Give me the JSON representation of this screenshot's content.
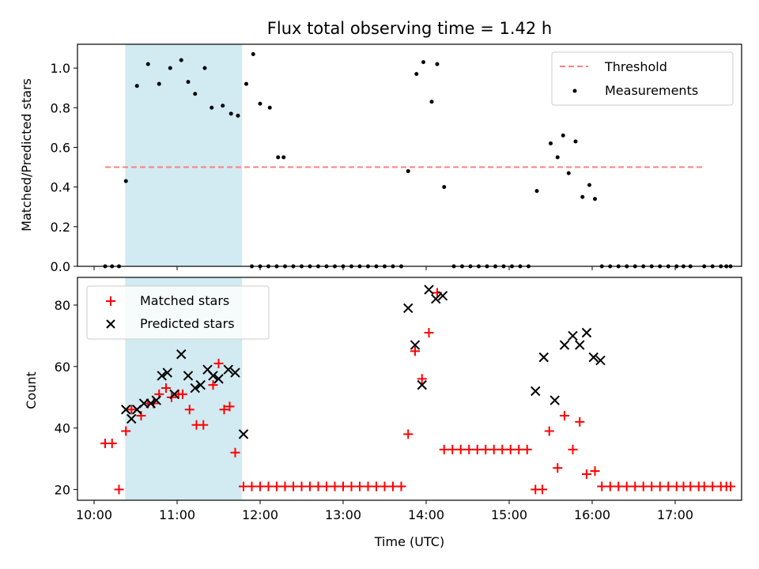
{
  "title": "Flux total observing time = 1.42 h",
  "x_axis": {
    "label": "Time (UTC)",
    "ticks": [
      {
        "t": 10,
        "label": "10:00"
      },
      {
        "t": 11,
        "label": "11:00"
      },
      {
        "t": 12,
        "label": "12:00"
      },
      {
        "t": 13,
        "label": "13:00"
      },
      {
        "t": 14,
        "label": "14:00"
      },
      {
        "t": 15,
        "label": "15:00"
      },
      {
        "t": 16,
        "label": "16:00"
      },
      {
        "t": 17,
        "label": "17:00"
      }
    ]
  },
  "shaded_region": {
    "start": 10.375,
    "end": 11.783,
    "color": "#add8e6"
  },
  "colors": {
    "threshold": "#ff7f7f",
    "measurement": "#000000",
    "matched": "#ff0000",
    "predicted": "#000000"
  },
  "chart_data": [
    {
      "type": "scatter",
      "ylabel": "Matched/Predicted stars",
      "xlim": [
        "09:48",
        "17:48"
      ],
      "ylim": [
        0,
        1.12
      ],
      "yticks": [
        0.0,
        0.2,
        0.4,
        0.6,
        0.8,
        1.0
      ],
      "legend": {
        "position": "upper right",
        "entries": [
          "Threshold",
          "Measurements"
        ]
      },
      "threshold": {
        "name": "Threshold",
        "y": 0.5,
        "x_range": [
          "10:08",
          "17:20"
        ],
        "style": "dashed"
      },
      "series": [
        {
          "name": "Measurements",
          "points": [
            [
              "10:08",
              0
            ],
            [
              "10:13",
              0
            ],
            [
              "10:18",
              0
            ],
            [
              "10:23",
              0.43
            ],
            [
              "10:31",
              0.91
            ],
            [
              "10:39",
              1.02
            ],
            [
              "10:47",
              0.92
            ],
            [
              "10:55",
              1.0
            ],
            [
              "11:03",
              1.04
            ],
            [
              "11:08",
              0.93
            ],
            [
              "11:13",
              0.87
            ],
            [
              "11:20",
              1.0
            ],
            [
              "11:25",
              0.8
            ],
            [
              "11:33",
              0.81
            ],
            [
              "11:39",
              0.77
            ],
            [
              "11:44",
              0.76
            ],
            [
              "11:50",
              0.92
            ],
            [
              "11:55",
              1.07
            ],
            [
              "12:00",
              0.82
            ],
            [
              "12:07",
              0.8
            ],
            [
              "12:13",
              0.55
            ],
            [
              "12:17",
              0.55
            ],
            [
              "11:54",
              0
            ],
            [
              "12:00",
              0
            ],
            [
              "12:06",
              0
            ],
            [
              "12:12",
              0
            ],
            [
              "12:18",
              0
            ],
            [
              "12:24",
              0
            ],
            [
              "12:30",
              0
            ],
            [
              "12:36",
              0
            ],
            [
              "12:42",
              0
            ],
            [
              "12:48",
              0
            ],
            [
              "12:54",
              0
            ],
            [
              "13:00",
              0
            ],
            [
              "13:06",
              0
            ],
            [
              "13:12",
              0
            ],
            [
              "13:18",
              0
            ],
            [
              "13:24",
              0
            ],
            [
              "13:30",
              0
            ],
            [
              "13:36",
              0
            ],
            [
              "13:42",
              0
            ],
            [
              "13:47",
              0.48
            ],
            [
              "13:53",
              0.97
            ],
            [
              "13:58",
              1.03
            ],
            [
              "14:04",
              0.83
            ],
            [
              "14:08",
              1.02
            ],
            [
              "14:13",
              0.4
            ],
            [
              "14:20",
              0
            ],
            [
              "14:26",
              0
            ],
            [
              "14:32",
              0
            ],
            [
              "14:38",
              0
            ],
            [
              "14:44",
              0
            ],
            [
              "14:50",
              0
            ],
            [
              "14:56",
              0
            ],
            [
              "15:02",
              0
            ],
            [
              "15:08",
              0
            ],
            [
              "15:14",
              0
            ],
            [
              "15:20",
              0.38
            ],
            [
              "15:30",
              0.62
            ],
            [
              "15:35",
              0.55
            ],
            [
              "15:39",
              0.66
            ],
            [
              "15:43",
              0.47
            ],
            [
              "15:48",
              0.63
            ],
            [
              "15:53",
              0.35
            ],
            [
              "15:58",
              0.41
            ],
            [
              "16:02",
              0.34
            ],
            [
              "16:07",
              0
            ],
            [
              "16:13",
              0
            ],
            [
              "16:19",
              0
            ],
            [
              "16:25",
              0
            ],
            [
              "16:31",
              0
            ],
            [
              "16:37",
              0
            ],
            [
              "16:43",
              0
            ],
            [
              "16:49",
              0
            ],
            [
              "16:55",
              0
            ],
            [
              "17:01",
              0
            ],
            [
              "17:06",
              0
            ],
            [
              "17:11",
              0
            ],
            [
              "17:21",
              0
            ],
            [
              "17:27",
              0
            ],
            [
              "17:33",
              0
            ],
            [
              "17:37",
              0
            ],
            [
              "17:40",
              0
            ]
          ]
        }
      ]
    },
    {
      "type": "scatter",
      "ylabel": "Count",
      "xlabel": "Time (UTC)",
      "xlim": [
        "09:48",
        "17:48"
      ],
      "ylim": [
        16.5,
        89
      ],
      "yticks": [
        20,
        40,
        60,
        80
      ],
      "legend": {
        "position": "upper left",
        "entries": [
          "Matched stars",
          "Predicted stars"
        ]
      },
      "series": [
        {
          "name": "Matched stars",
          "marker": "+",
          "points": [
            [
              "10:08",
              35
            ],
            [
              "10:13",
              35
            ],
            [
              "10:18",
              20
            ],
            [
              "10:23",
              39
            ],
            [
              "10:27",
              46
            ],
            [
              "10:34",
              44
            ],
            [
              "10:39",
              48
            ],
            [
              "10:43",
              48
            ],
            [
              "10:47",
              51
            ],
            [
              "10:52",
              53
            ],
            [
              "10:56",
              50
            ],
            [
              "11:01",
              51
            ],
            [
              "11:04",
              51
            ],
            [
              "11:09",
              46
            ],
            [
              "11:14",
              41
            ],
            [
              "11:19",
              41
            ],
            [
              "11:26",
              54
            ],
            [
              "11:30",
              61
            ],
            [
              "11:34",
              46
            ],
            [
              "11:38",
              47
            ],
            [
              "11:42",
              32
            ],
            [
              "11:48",
              21
            ],
            [
              "11:54",
              21
            ],
            [
              "12:00",
              21
            ],
            [
              "12:06",
              21
            ],
            [
              "12:12",
              21
            ],
            [
              "12:18",
              21
            ],
            [
              "12:24",
              21
            ],
            [
              "12:30",
              21
            ],
            [
              "12:36",
              21
            ],
            [
              "12:42",
              21
            ],
            [
              "12:48",
              21
            ],
            [
              "12:54",
              21
            ],
            [
              "13:00",
              21
            ],
            [
              "13:06",
              21
            ],
            [
              "13:12",
              21
            ],
            [
              "13:18",
              21
            ],
            [
              "13:24",
              21
            ],
            [
              "13:30",
              21
            ],
            [
              "13:36",
              21
            ],
            [
              "13:42",
              21
            ],
            [
              "13:47",
              38
            ],
            [
              "13:52",
              65
            ],
            [
              "13:57",
              56
            ],
            [
              "14:02",
              71
            ],
            [
              "14:08",
              84
            ],
            [
              "14:13",
              33
            ],
            [
              "14:19",
              33
            ],
            [
              "14:25",
              33
            ],
            [
              "14:31",
              33
            ],
            [
              "14:37",
              33
            ],
            [
              "14:43",
              33
            ],
            [
              "14:49",
              33
            ],
            [
              "14:55",
              33
            ],
            [
              "15:01",
              33
            ],
            [
              "15:07",
              33
            ],
            [
              "15:13",
              33
            ],
            [
              "15:19",
              20
            ],
            [
              "15:24",
              20
            ],
            [
              "15:29",
              39
            ],
            [
              "15:35",
              27
            ],
            [
              "15:40",
              44
            ],
            [
              "15:46",
              33
            ],
            [
              "15:51",
              42
            ],
            [
              "15:56",
              25
            ],
            [
              "16:02",
              26
            ],
            [
              "16:07",
              21
            ],
            [
              "16:13",
              21
            ],
            [
              "16:19",
              21
            ],
            [
              "16:25",
              21
            ],
            [
              "16:31",
              21
            ],
            [
              "16:37",
              21
            ],
            [
              "16:43",
              21
            ],
            [
              "16:49",
              21
            ],
            [
              "16:55",
              21
            ],
            [
              "17:01",
              21
            ],
            [
              "17:06",
              21
            ],
            [
              "17:11",
              21
            ],
            [
              "17:17",
              21
            ],
            [
              "17:21",
              21
            ],
            [
              "17:27",
              21
            ],
            [
              "17:33",
              21
            ],
            [
              "17:37",
              21
            ],
            [
              "17:40",
              21
            ]
          ]
        },
        {
          "name": "Predicted stars",
          "marker": "x",
          "points": [
            [
              "10:23",
              46
            ],
            [
              "10:27",
              43
            ],
            [
              "10:31",
              46
            ],
            [
              "10:36",
              48
            ],
            [
              "10:41",
              48
            ],
            [
              "10:45",
              49
            ],
            [
              "10:49",
              57
            ],
            [
              "10:53",
              58
            ],
            [
              "10:58",
              51
            ],
            [
              "11:03",
              64
            ],
            [
              "11:08",
              57
            ],
            [
              "11:13",
              53
            ],
            [
              "11:17",
              54
            ],
            [
              "11:22",
              59
            ],
            [
              "11:26",
              57
            ],
            [
              "11:30",
              56
            ],
            [
              "11:37",
              59
            ],
            [
              "11:42",
              58
            ],
            [
              "11:48",
              38
            ],
            [
              "13:47",
              79
            ],
            [
              "13:52",
              67
            ],
            [
              "13:57",
              54
            ],
            [
              "14:02",
              85
            ],
            [
              "14:07",
              82
            ],
            [
              "14:12",
              83
            ],
            [
              "15:19",
              52
            ],
            [
              "15:25",
              63
            ],
            [
              "15:33",
              49
            ],
            [
              "15:40",
              67
            ],
            [
              "15:46",
              70
            ],
            [
              "15:51",
              67
            ],
            [
              "15:56",
              71
            ],
            [
              "16:01",
              63
            ],
            [
              "16:06",
              62
            ]
          ]
        }
      ]
    }
  ]
}
